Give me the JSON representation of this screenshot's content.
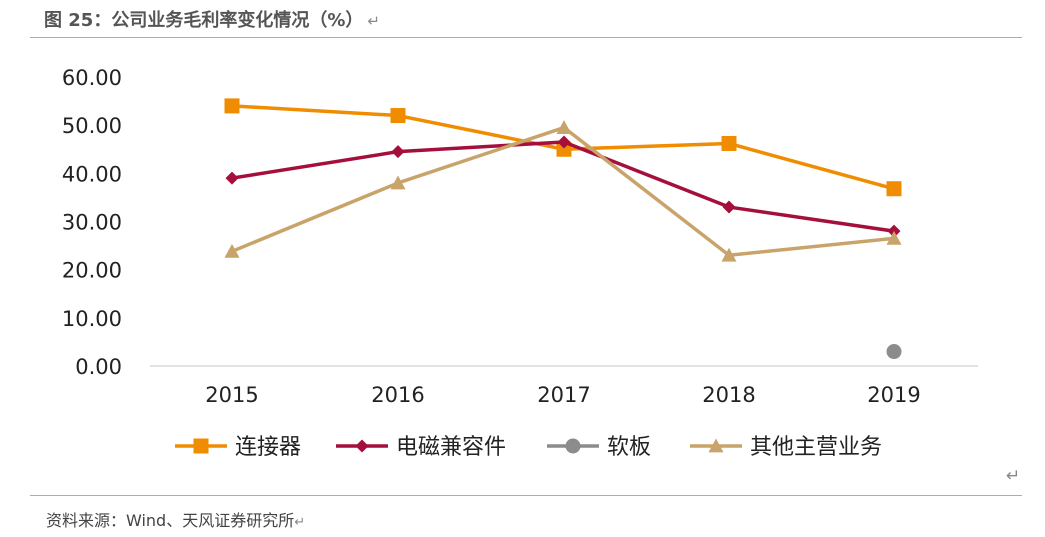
{
  "header": {
    "title": "图 25：公司业务毛利率变化情况（%）",
    "return_mark": "↵"
  },
  "footer": {
    "source": "资料来源：Wind、天风证券研究所",
    "return_mark": "↵",
    "para_mark": "↵"
  },
  "chart_data": {
    "type": "line",
    "categories": [
      "2015",
      "2016",
      "2017",
      "2018",
      "2019"
    ],
    "ylim": [
      0,
      60
    ],
    "yticks": [
      "0.00",
      "10.00",
      "20.00",
      "30.00",
      "40.00",
      "50.00",
      "60.00"
    ],
    "grid": false,
    "legend_position": "bottom",
    "series": [
      {
        "name": "连接器",
        "values": [
          54,
          52,
          45,
          46.2,
          36.8
        ],
        "color": "#F08C00",
        "marker": "square"
      },
      {
        "name": "电磁兼容件",
        "values": [
          39,
          44.5,
          46.5,
          33,
          28
        ],
        "color": "#A50F3C",
        "marker": "diamond"
      },
      {
        "name": "软板",
        "values": [
          null,
          null,
          null,
          null,
          3
        ],
        "color": "#8C8C8C",
        "marker": "circle"
      },
      {
        "name": "其他主营业务",
        "values": [
          23.8,
          38,
          49.5,
          23,
          26.5
        ],
        "color": "#C9A46A",
        "marker": "triangle"
      }
    ]
  }
}
